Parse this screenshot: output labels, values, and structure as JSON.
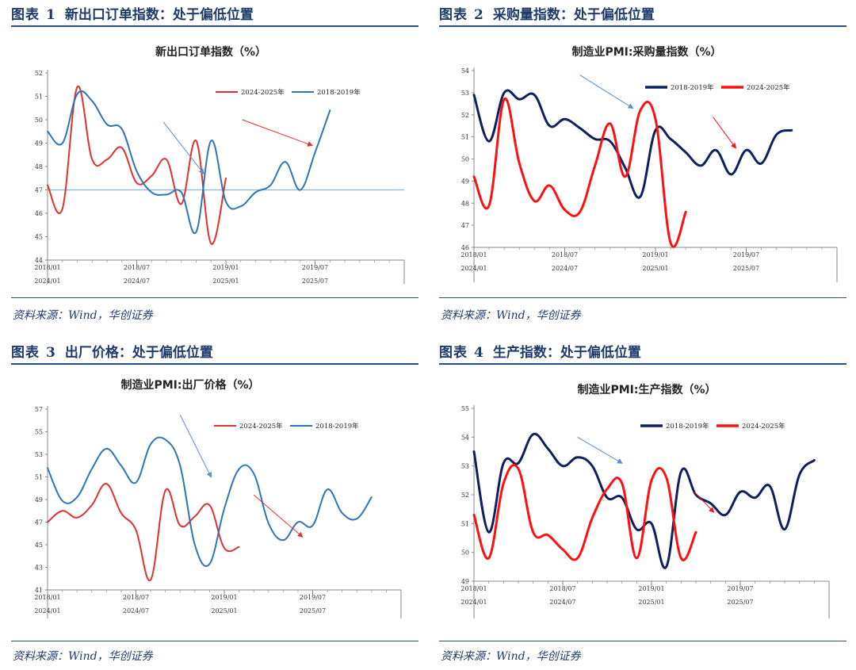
{
  "source_text": "资料来源：Wind，华创证券",
  "colors": {
    "header": "#1f3a6b",
    "rule": "#2a4f86"
  },
  "panels": [
    {
      "fig_label": "图表",
      "fig_num": "1",
      "heading": "新出口订单指数：处于偏低位置",
      "chart_data": {
        "type": "line",
        "title": "新出口订单指数（%）",
        "ylim": [
          44,
          52
        ],
        "yticks": [
          44,
          45,
          46,
          47,
          48,
          49,
          50,
          51,
          52
        ],
        "x_count": 24,
        "xlabels_top": [
          "2018/01",
          "2018/07",
          "2019/01",
          "2019/07"
        ],
        "xlabels_bottom": [
          "2024/01",
          "2024/07",
          "2025/01",
          "2025/07"
        ],
        "xlabel_idx": [
          0,
          6,
          12,
          18
        ],
        "legend_style": "ab",
        "reference_line": 47.0,
        "series": [
          {
            "name": "2024-2025年",
            "color": "#e03030",
            "width": 2,
            "values": [
              47.2,
              46.2,
              51.4,
              48.3,
              48.3,
              48.8,
              47.3,
              47.6,
              48.3,
              46.4,
              49.1,
              44.7,
              47.5
            ]
          },
          {
            "name": "2018-2019年",
            "color": "#2e75b6",
            "width": 2,
            "values": [
              49.5,
              49.0,
              51.1,
              50.8,
              49.8,
              49.6,
              47.8,
              46.9,
              46.8,
              46.9,
              45.2,
              49.1,
              46.5,
              46.3,
              46.9,
              47.2,
              48.2,
              47.0,
              48.6,
              50.4
            ]
          }
        ],
        "arrows": [
          {
            "color": "#5b8ed0",
            "from": [
              7.8,
              49.9
            ],
            "to": [
              10.5,
              47.7
            ]
          },
          {
            "color": "#e03030",
            "from": [
              13.1,
              50.0
            ],
            "to": [
              17.8,
              48.9
            ]
          }
        ]
      }
    },
    {
      "fig_label": "图表",
      "fig_num": "2",
      "heading": "采购量指数：处于偏低位置",
      "chart_data": {
        "type": "line",
        "title": "制造业PMI:采购量指数（%）",
        "ylim": [
          46,
          54
        ],
        "yticks": [
          46,
          47,
          48,
          49,
          50,
          51,
          52,
          53,
          54
        ],
        "x_count": 24,
        "xlabels_top": [
          "2018/01",
          "2018/07",
          "2019/01",
          "2019/07"
        ],
        "xlabels_bottom": [
          "2024/01",
          "2024/07",
          "2025/01",
          "2025/07"
        ],
        "xlabel_idx": [
          0,
          6,
          12,
          18
        ],
        "legend_style": "ba",
        "series": [
          {
            "name": "2018-2019年",
            "color": "#0f2060",
            "width": 3,
            "values": [
              52.9,
              50.8,
              53.0,
              52.7,
              52.9,
              51.5,
              51.8,
              51.4,
              50.9,
              50.8,
              49.6,
              48.3,
              51.3,
              50.9,
              50.3,
              49.7,
              50.4,
              49.3,
              50.4,
              49.8,
              51.1,
              51.3
            ]
          },
          {
            "name": "2024-2025年",
            "color": "#ff1010",
            "width": 3,
            "values": [
              49.2,
              47.9,
              52.7,
              49.8,
              48.1,
              48.8,
              47.7,
              47.6,
              49.7,
              51.6,
              49.2,
              52.2,
              51.8,
              46.2,
              47.6
            ]
          }
        ],
        "arrows": [
          {
            "color": "#5b8ed0",
            "from": [
              7.0,
              53.8
            ],
            "to": [
              10.5,
              52.3
            ]
          },
          {
            "color": "#ff1010",
            "from": [
              15.8,
              51.9
            ],
            "to": [
              17.3,
              50.5
            ]
          }
        ]
      }
    },
    {
      "fig_label": "图表",
      "fig_num": "3",
      "heading": "出厂价格：处于偏低位置",
      "chart_data": {
        "type": "line",
        "title": "制造业PMI:出厂价格（%）",
        "ylim": [
          41,
          57
        ],
        "yticks": [
          41,
          43,
          45,
          47,
          49,
          51,
          53,
          55,
          57
        ],
        "x_count": 24,
        "xlabels_top": [
          "2018/01",
          "2018/07",
          "2019/01",
          "2019/07"
        ],
        "xlabels_bottom": [
          "2024/01",
          "2024/07",
          "2025/01",
          "2025/07"
        ],
        "xlabel_idx": [
          0,
          6,
          12,
          18
        ],
        "legend_style": "ab",
        "series": [
          {
            "name": "2024-2025年",
            "color": "#e03030",
            "width": 2,
            "values": [
              47.0,
              48.0,
              47.4,
              48.5,
              50.4,
              47.8,
              46.3,
              41.9,
              49.8,
              46.7,
              47.5,
              48.5,
              44.7,
              44.8
            ]
          },
          {
            "name": "2018-2019年",
            "color": "#2e75b6",
            "width": 2,
            "values": [
              51.8,
              48.9,
              49.2,
              51.7,
              53.5,
              52.0,
              50.5,
              53.9,
              54.3,
              52.0,
              45.0,
              43.3,
              48.2,
              51.7,
              51.3,
              46.9,
              45.4,
              47.0,
              46.7,
              49.9,
              47.8,
              47.3,
              49.2
            ]
          }
        ],
        "arrows": [
          {
            "color": "#5b8ed0",
            "from": [
              9.0,
              56.5
            ],
            "to": [
              11.1,
              51.0
            ]
          },
          {
            "color": "#e03030",
            "from": [
              14.0,
              49.4
            ],
            "to": [
              17.3,
              45.7
            ]
          }
        ]
      }
    },
    {
      "fig_label": "图表",
      "fig_num": "4",
      "heading": "生产指数：处于偏低位置",
      "chart_data": {
        "type": "line",
        "title": "制造业PMI:生产指数（%）",
        "ylim": [
          49,
          55
        ],
        "yticks": [
          49,
          50,
          51,
          52,
          53,
          54,
          55
        ],
        "x_count": 24,
        "xlabels_top": [
          "2018/01",
          "2018/07",
          "2019/01",
          "2019/07"
        ],
        "xlabels_bottom": [
          "2024/01",
          "2024/07",
          "2025/01",
          "2025/07"
        ],
        "xlabel_idx": [
          0,
          6,
          12,
          18
        ],
        "legend_style": "ba",
        "series": [
          {
            "name": "2018-2019年",
            "color": "#0f2060",
            "width": 3,
            "values": [
              53.5,
              50.7,
              53.1,
              53.1,
              54.1,
              53.6,
              53.0,
              53.3,
              53.0,
              51.9,
              51.9,
              50.8,
              51.0,
              49.5,
              52.8,
              52.0,
              51.7,
              51.3,
              52.1,
              51.9,
              52.3,
              50.8,
              52.7,
              53.2
            ]
          },
          {
            "name": "2024-2025年",
            "color": "#ff1010",
            "width": 3,
            "values": [
              51.3,
              49.8,
              52.4,
              52.9,
              50.7,
              50.6,
              50.1,
              49.8,
              51.2,
              52.2,
              52.4,
              49.8,
              52.5,
              52.6,
              49.8,
              50.7
            ]
          }
        ],
        "arrows": [
          {
            "color": "#5b8ed0",
            "from": [
              7.0,
              54.0
            ],
            "to": [
              10.0,
              53.1
            ]
          },
          {
            "color": "#ff1010",
            "from": [
              14.9,
              52.1
            ],
            "to": [
              16.2,
              51.4
            ]
          }
        ]
      }
    }
  ]
}
